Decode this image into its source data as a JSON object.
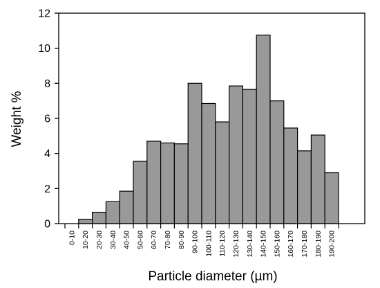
{
  "chart_data": {
    "type": "bar",
    "title": "",
    "xlabel": "Particle diameter (µm)",
    "ylabel": "Weight %",
    "ylim": [
      0,
      12
    ],
    "yticks": [
      "0",
      "2",
      "4",
      "6",
      "8",
      "10",
      "12"
    ],
    "grid": false,
    "categories": [
      "0-10",
      "10-20",
      "20-30",
      "30-40",
      "40-50",
      "50-60",
      "60-70",
      "70-80",
      "80-90",
      "90-100",
      "100-110",
      "110-120",
      "120-130",
      "130-140",
      "140-150",
      "150-160",
      "160-170",
      "170-180",
      "180-190",
      "190-200"
    ],
    "values": [
      0,
      0.25,
      0.65,
      1.25,
      1.85,
      3.55,
      4.7,
      4.6,
      4.55,
      8.0,
      6.85,
      5.8,
      7.85,
      7.65,
      10.75,
      7.0,
      5.45,
      4.15,
      5.05,
      2.9
    ],
    "colors": {
      "bar_fill": "#999999",
      "bar_stroke": "#000000",
      "axis": "#000000"
    }
  }
}
